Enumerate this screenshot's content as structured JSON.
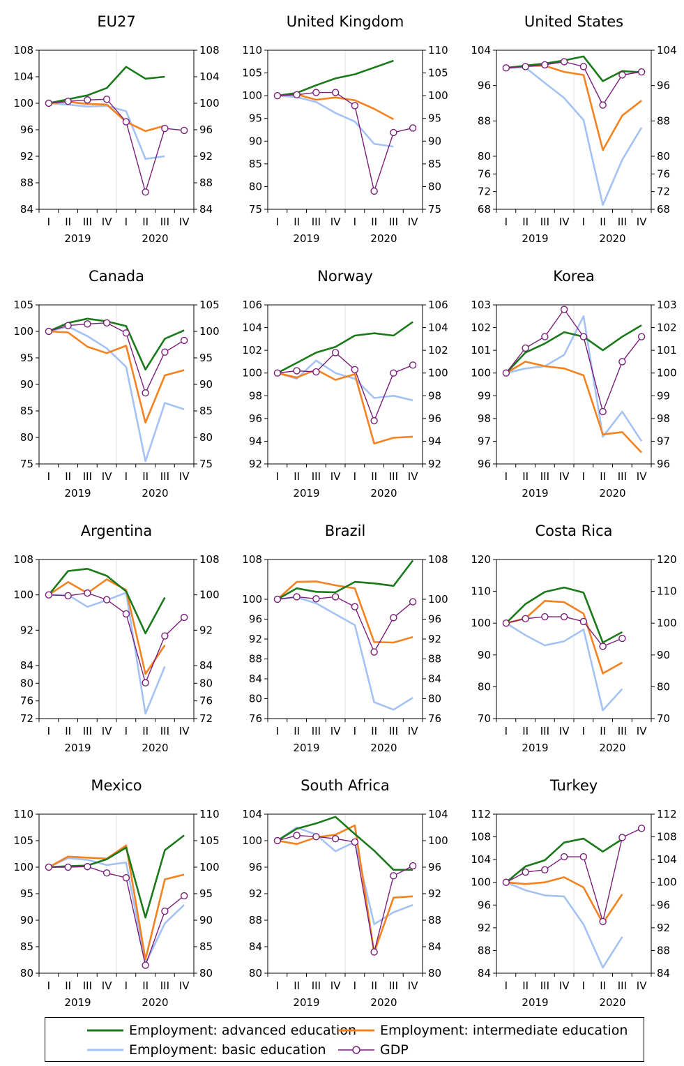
{
  "legend": [
    {
      "key": "adv",
      "label": "Employment: advanced education",
      "color": "#1a7a1a"
    },
    {
      "key": "inter",
      "label": "Employment: intermediate education",
      "color": "#f5821f"
    },
    {
      "key": "basic",
      "label": "Employment: basic education",
      "color": "#a4c2f4"
    },
    {
      "key": "gdp",
      "label": "GDP",
      "color": "#7a1f7a"
    }
  ],
  "chart_data": [
    {
      "type": "line",
      "title": "EU27",
      "ylim": [
        84,
        108
      ],
      "yticks": [
        84,
        88,
        92,
        96,
        100,
        104,
        108
      ],
      "x": [
        "I",
        "II",
        "III",
        "IV",
        "I",
        "II",
        "III",
        "IV"
      ],
      "year_labels": [
        "2019",
        "2020"
      ],
      "series": [
        {
          "name": "Employment: advanced education",
          "values": [
            100,
            100.6,
            101.2,
            102.3,
            105.5,
            103.7,
            104,
            null
          ]
        },
        {
          "name": "Employment: intermediate education",
          "values": [
            100,
            100.2,
            99.9,
            99.8,
            97.2,
            95.8,
            96.6,
            null
          ]
        },
        {
          "name": "Employment: basic education",
          "values": [
            100,
            99.8,
            99.5,
            99.6,
            98.8,
            91.6,
            92,
            null
          ]
        },
        {
          "name": "GDP",
          "values": [
            100,
            100.3,
            100.5,
            100.6,
            97.2,
            86.6,
            96.2,
            95.9
          ]
        }
      ]
    },
    {
      "type": "line",
      "title": "United Kingdom",
      "ylim": [
        75,
        110
      ],
      "yticks": [
        75,
        80,
        85,
        90,
        95,
        100,
        105,
        110
      ],
      "x": [
        "I",
        "II",
        "III",
        "IV",
        "I",
        "II",
        "III",
        "IV"
      ],
      "year_labels": [
        "2019",
        "2020"
      ],
      "series": [
        {
          "name": "Employment: advanced education",
          "values": [
            100,
            100.6,
            102.3,
            103.8,
            104.7,
            106.2,
            107.7,
            null
          ]
        },
        {
          "name": "Employment: intermediate education",
          "values": [
            100,
            100.3,
            99.1,
            99.6,
            99,
            97.1,
            94.8,
            null
          ]
        },
        {
          "name": "Employment: basic education",
          "values": [
            100,
            99.7,
            98.6,
            96.2,
            94.3,
            89.4,
            88.8,
            null
          ]
        },
        {
          "name": "GDP",
          "values": [
            100,
            100.2,
            100.7,
            100.7,
            97.8,
            79,
            91.9,
            92.9
          ]
        }
      ]
    },
    {
      "type": "line",
      "title": "United States",
      "ylim": [
        68,
        104
      ],
      "yticks": [
        68,
        72,
        76,
        80,
        88,
        96,
        104
      ],
      "x": [
        "I",
        "II",
        "III",
        "IV",
        "I",
        "II",
        "III",
        "IV"
      ],
      "year_labels": [
        "2019",
        "2020"
      ],
      "series": [
        {
          "name": "Employment: advanced education",
          "values": [
            100,
            100.5,
            101,
            101.7,
            102.6,
            97,
            99.3,
            99
          ]
        },
        {
          "name": "Employment: intermediate education",
          "values": [
            100,
            100.4,
            100.5,
            99.1,
            98.4,
            81.4,
            89.2,
            92.6
          ]
        },
        {
          "name": "Employment: basic education",
          "values": [
            100,
            100.1,
            96.6,
            93.2,
            88.2,
            69,
            79.2,
            86.5
          ]
        },
        {
          "name": "GDP",
          "values": [
            100,
            100.3,
            100.7,
            101.4,
            100.3,
            91.6,
            98.4,
            99.1
          ]
        }
      ]
    },
    {
      "type": "line",
      "title": "Canada",
      "ylim": [
        75,
        105
      ],
      "yticks": [
        75,
        80,
        85,
        90,
        95,
        100,
        105
      ],
      "x": [
        "I",
        "II",
        "III",
        "IV",
        "I",
        "II",
        "III",
        "IV"
      ],
      "year_labels": [
        "2019",
        "2020"
      ],
      "series": [
        {
          "name": "Employment: advanced education",
          "values": [
            100,
            101.6,
            102.4,
            101.9,
            101,
            92.8,
            98.6,
            100.2
          ]
        },
        {
          "name": "Employment: intermediate education",
          "values": [
            100,
            99.8,
            97.1,
            95.9,
            97.3,
            82.8,
            91.7,
            92.7
          ]
        },
        {
          "name": "Employment: basic education",
          "values": [
            100,
            100.9,
            99.1,
            96.8,
            93.3,
            75.5,
            86.5,
            85.3
          ]
        },
        {
          "name": "GDP",
          "values": [
            100,
            101.1,
            101.4,
            101.6,
            99.7,
            88.4,
            96.1,
            98.3
          ]
        }
      ]
    },
    {
      "type": "line",
      "title": "Norway",
      "ylim": [
        92,
        106
      ],
      "yticks": [
        92,
        94,
        96,
        98,
        100,
        102,
        104,
        106
      ],
      "x": [
        "I",
        "II",
        "III",
        "IV",
        "I",
        "II",
        "III",
        "IV"
      ],
      "year_labels": [
        "2019",
        "2020"
      ],
      "series": [
        {
          "name": "Employment: advanced education",
          "values": [
            100,
            100.9,
            101.8,
            102.3,
            103.3,
            103.5,
            103.3,
            104.5
          ]
        },
        {
          "name": "Employment: intermediate education",
          "values": [
            100,
            99.6,
            100.3,
            99.4,
            99.9,
            93.8,
            94.3,
            94.4
          ]
        },
        {
          "name": "Employment: basic education",
          "values": [
            100,
            99.5,
            101.1,
            100,
            99.5,
            97.8,
            98,
            97.6
          ]
        },
        {
          "name": "GDP",
          "values": [
            100,
            100.2,
            100.1,
            101.8,
            100.3,
            95.8,
            100,
            100.7
          ]
        }
      ]
    },
    {
      "type": "line",
      "title": "Korea",
      "ylim": [
        96,
        103
      ],
      "yticks": [
        96,
        97,
        98,
        99,
        100,
        101,
        102,
        103
      ],
      "x": [
        "I",
        "II",
        "III",
        "IV",
        "I",
        "II",
        "III",
        "IV"
      ],
      "year_labels": [
        "2019",
        "2020"
      ],
      "series": [
        {
          "name": "Employment: advanced education",
          "values": [
            100,
            100.9,
            101.3,
            101.8,
            101.6,
            101,
            101.6,
            102.1
          ]
        },
        {
          "name": "Employment: intermediate education",
          "values": [
            100,
            100.5,
            100.3,
            100.2,
            99.9,
            97.3,
            97.4,
            96.5
          ]
        },
        {
          "name": "Employment: basic education",
          "values": [
            100,
            100.2,
            100.3,
            100.8,
            102.5,
            97.2,
            98.3,
            97
          ]
        },
        {
          "name": "GDP",
          "values": [
            100,
            101.1,
            101.6,
            102.8,
            101.6,
            98.3,
            100.5,
            101.6
          ]
        }
      ]
    },
    {
      "type": "line",
      "title": "Argentina",
      "ylim": [
        72,
        108
      ],
      "yticks": [
        72,
        76,
        80,
        84,
        92,
        100,
        108
      ],
      "x": [
        "I",
        "II",
        "III",
        "IV",
        "I",
        "II",
        "III",
        "IV"
      ],
      "year_labels": [
        "2019",
        "2020"
      ],
      "series": [
        {
          "name": "Employment: advanced education",
          "values": [
            100,
            105.4,
            105.9,
            104.3,
            100.8,
            91.3,
            99.4,
            null
          ]
        },
        {
          "name": "Employment: intermediate education",
          "values": [
            100,
            102.9,
            100.4,
            103.5,
            101.1,
            82.1,
            88.6,
            null
          ]
        },
        {
          "name": "Employment: basic education",
          "values": [
            100,
            100,
            97.3,
            98.8,
            100.5,
            73.1,
            83.8,
            null
          ]
        },
        {
          "name": "GDP",
          "values": [
            100,
            99.8,
            100.4,
            98.9,
            95.7,
            80.1,
            90.7,
            94.9
          ]
        }
      ]
    },
    {
      "type": "line",
      "title": "Brazil",
      "ylim": [
        76,
        108
      ],
      "yticks": [
        76,
        80,
        84,
        88,
        92,
        96,
        100,
        108
      ],
      "x": [
        "I",
        "II",
        "III",
        "IV",
        "I",
        "II",
        "III",
        "IV"
      ],
      "year_labels": [
        "2019",
        "2020"
      ],
      "series": [
        {
          "name": "Employment: advanced education",
          "values": [
            100,
            102.2,
            101.5,
            101.4,
            103.5,
            103.2,
            102.7,
            107.8
          ]
        },
        {
          "name": "Employment: intermediate education",
          "values": [
            100,
            103.5,
            103.6,
            102.8,
            102.2,
            91.4,
            91.3,
            92.4
          ]
        },
        {
          "name": "Employment: basic education",
          "values": [
            100,
            100.4,
            99.2,
            97,
            94.8,
            79.3,
            77.8,
            80.2
          ]
        },
        {
          "name": "GDP",
          "values": [
            100,
            100.5,
            100.1,
            100.5,
            98.5,
            89.4,
            96.3,
            99.5
          ]
        }
      ]
    },
    {
      "type": "line",
      "title": "Costa Rica",
      "ylim": [
        70,
        120
      ],
      "yticks": [
        70,
        80,
        90,
        100,
        110,
        120
      ],
      "x": [
        "I",
        "II",
        "III",
        "IV",
        "I",
        "II",
        "III",
        "IV"
      ],
      "year_labels": [
        "2019",
        "2020"
      ],
      "series": [
        {
          "name": "Employment: advanced education",
          "values": [
            100,
            106,
            109.8,
            111.2,
            109.6,
            93.9,
            97.2,
            null
          ]
        },
        {
          "name": "Employment: intermediate education",
          "values": [
            100,
            101.5,
            107,
            106.6,
            103,
            84.2,
            87.6,
            null
          ]
        },
        {
          "name": "Employment: basic education",
          "values": [
            100,
            96.2,
            93,
            94.3,
            98,
            72.6,
            79.3,
            null
          ]
        },
        {
          "name": "GDP",
          "values": [
            100,
            101.4,
            102,
            102,
            100.5,
            92.7,
            95.2,
            null
          ]
        }
      ]
    },
    {
      "type": "line",
      "title": "Mexico",
      "ylim": [
        80,
        110
      ],
      "yticks": [
        80,
        85,
        90,
        95,
        100,
        105,
        110
      ],
      "x": [
        "I",
        "II",
        "III",
        "IV",
        "I",
        "II",
        "III",
        "IV"
      ],
      "year_labels": [
        "2019",
        "2020"
      ],
      "series": [
        {
          "name": "Employment: advanced education",
          "values": [
            100,
            100.2,
            100.3,
            101.5,
            103.7,
            90.5,
            103.2,
            106
          ]
        },
        {
          "name": "Employment: intermediate education",
          "values": [
            100,
            102,
            101.8,
            101.6,
            104.1,
            82.6,
            97.7,
            98.6
          ]
        },
        {
          "name": "Employment: basic education",
          "values": [
            100,
            101.7,
            101.4,
            100.4,
            100.9,
            81.8,
            89.4,
            92.9
          ]
        },
        {
          "name": "GDP",
          "values": [
            100,
            100,
            100.1,
            98.9,
            98,
            81.5,
            91.7,
            94.6
          ]
        }
      ]
    },
    {
      "type": "line",
      "title": "South Africa",
      "ylim": [
        80,
        104
      ],
      "yticks": [
        80,
        84,
        88,
        92,
        96,
        100,
        104
      ],
      "x": [
        "I",
        "II",
        "III",
        "IV",
        "I",
        "II",
        "III",
        "IV"
      ],
      "year_labels": [
        "2019",
        "2020"
      ],
      "series": [
        {
          "name": "Employment: advanced education",
          "values": [
            100,
            101.8,
            102.6,
            103.6,
            101,
            98.5,
            95.6,
            95.6
          ]
        },
        {
          "name": "Employment: intermediate education",
          "values": [
            100,
            99.5,
            100.5,
            100.9,
            102.3,
            83.1,
            91.4,
            91.6
          ]
        },
        {
          "name": "Employment: basic education",
          "values": [
            100,
            102,
            100.9,
            98.4,
            99.8,
            87.4,
            89.2,
            90.3
          ]
        },
        {
          "name": "GDP",
          "values": [
            100,
            100.8,
            100.6,
            100.3,
            99.8,
            83.2,
            94.7,
            96.2
          ]
        }
      ]
    },
    {
      "type": "line",
      "title": "Turkey",
      "ylim": [
        84,
        112
      ],
      "yticks": [
        84,
        88,
        92,
        96,
        100,
        104,
        108,
        112
      ],
      "x": [
        "I",
        "II",
        "III",
        "IV",
        "I",
        "II",
        "III",
        "IV"
      ],
      "year_labels": [
        "2019",
        "2020"
      ],
      "series": [
        {
          "name": "Employment: advanced education",
          "values": [
            100,
            102.8,
            103.9,
            107,
            107.7,
            105.4,
            107.6,
            null
          ]
        },
        {
          "name": "Employment: intermediate education",
          "values": [
            100,
            99.7,
            100,
            100.9,
            99.1,
            92.8,
            97.9,
            null
          ]
        },
        {
          "name": "Employment: basic education",
          "values": [
            100,
            98.6,
            97.7,
            97.5,
            92.6,
            85,
            90.4,
            null
          ]
        },
        {
          "name": "GDP",
          "values": [
            100,
            101.8,
            102.2,
            104.5,
            104.5,
            93.1,
            107.9,
            109.5
          ]
        }
      ]
    }
  ]
}
